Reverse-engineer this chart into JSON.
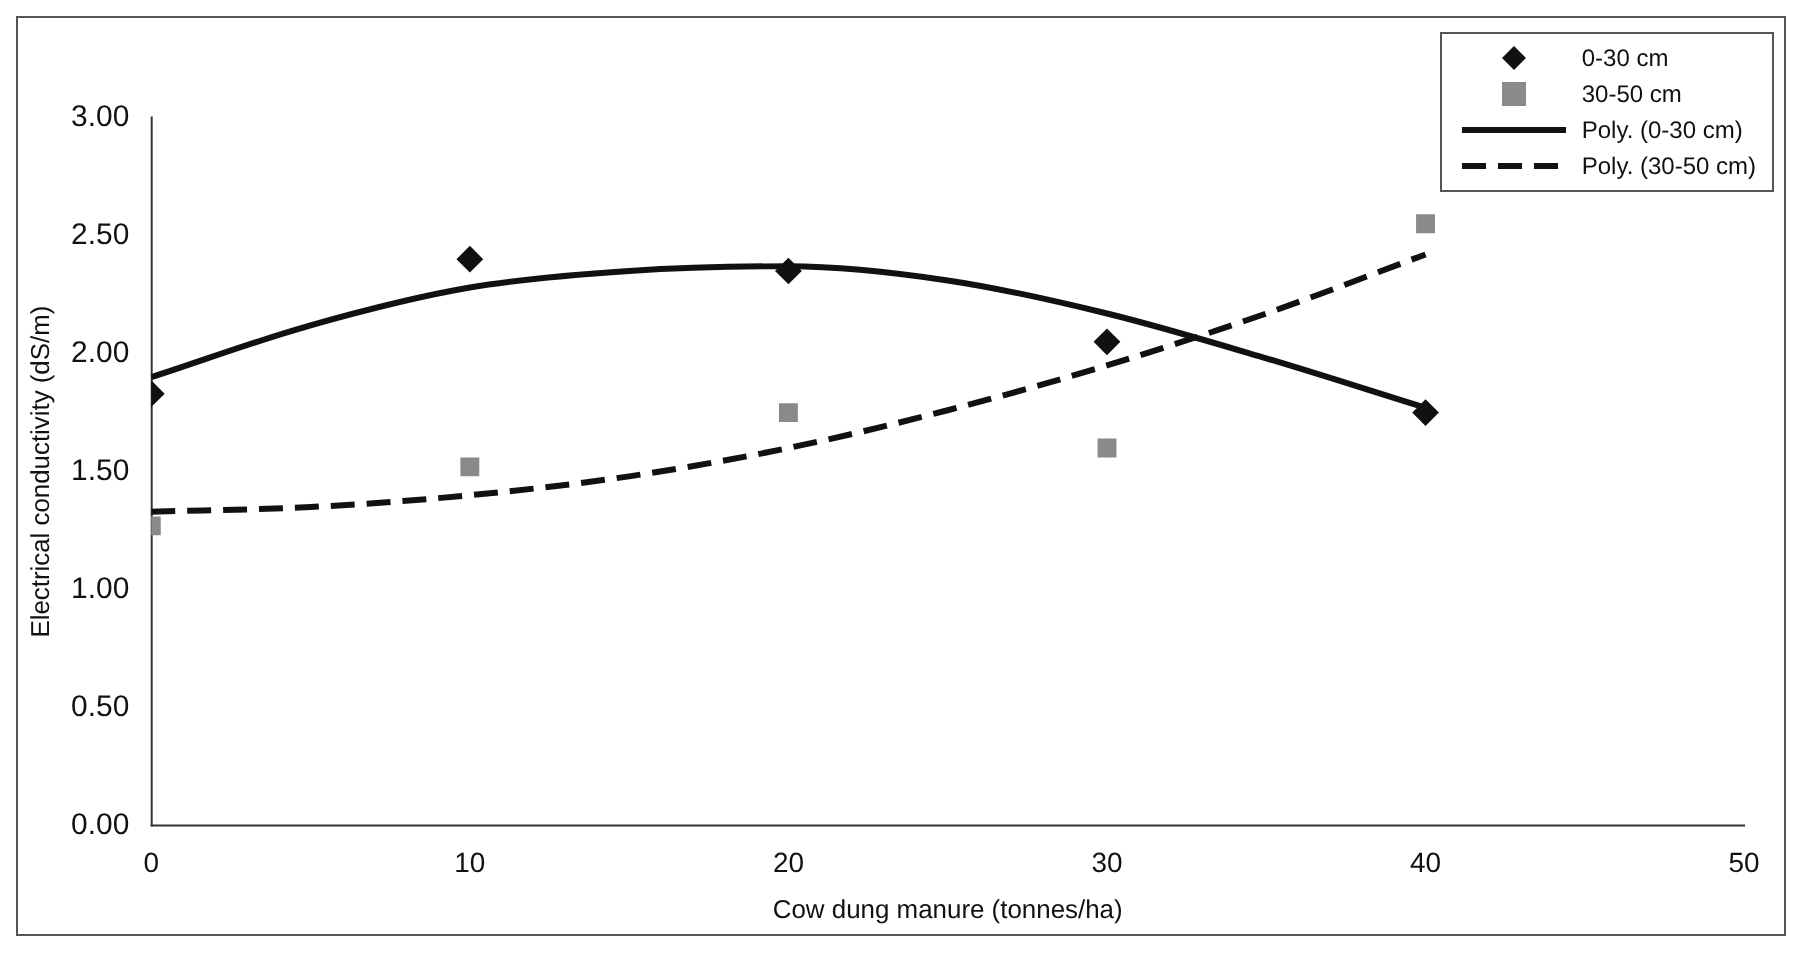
{
  "chart_data": {
    "type": "scatter",
    "xlabel": "Cow dung manure (tonnes/ha)",
    "ylabel": "Electrical conductivity (dS/m)",
    "x": [
      0,
      10,
      20,
      30,
      40
    ],
    "series": [
      {
        "name": "0-30 cm",
        "marker": "diamond",
        "color": "#111111",
        "values": [
          1.83,
          2.4,
          2.35,
          2.05,
          1.75
        ]
      },
      {
        "name": "30-50 cm",
        "marker": "square",
        "color": "#8a8a8a",
        "values": [
          1.27,
          1.52,
          1.75,
          1.6,
          2.55
        ]
      },
      {
        "name": "Poly. (0-30 cm)",
        "type": "line",
        "line_style": "solid",
        "color": "#111111",
        "x": [
          0,
          5,
          10,
          15,
          20,
          25,
          30,
          35,
          40
        ],
        "values": [
          1.9,
          2.12,
          2.28,
          2.35,
          2.37,
          2.31,
          2.17,
          1.98,
          1.77
        ]
      },
      {
        "name": "Poly. (30-50 cm)",
        "type": "line",
        "line_style": "dashed",
        "color": "#111111",
        "x": [
          0,
          5,
          10,
          15,
          20,
          25,
          30,
          35,
          40
        ],
        "values": [
          1.33,
          1.35,
          1.4,
          1.48,
          1.6,
          1.76,
          1.95,
          2.17,
          2.42
        ]
      }
    ],
    "xlim": [
      0,
      50
    ],
    "xticks": [
      0,
      10,
      20,
      30,
      40,
      50
    ],
    "ylim": [
      0,
      3
    ],
    "yticks": [
      {
        "value": 0,
        "label": "0.00"
      },
      {
        "value": 0.5,
        "label": "0.50"
      },
      {
        "value": 1,
        "label": "1.00"
      },
      {
        "value": 1.5,
        "label": "1.50"
      },
      {
        "value": 2,
        "label": "2.00"
      },
      {
        "value": 2.5,
        "label": "2.50"
      },
      {
        "value": 3,
        "label": "3.00"
      }
    ],
    "legend": "top right"
  }
}
